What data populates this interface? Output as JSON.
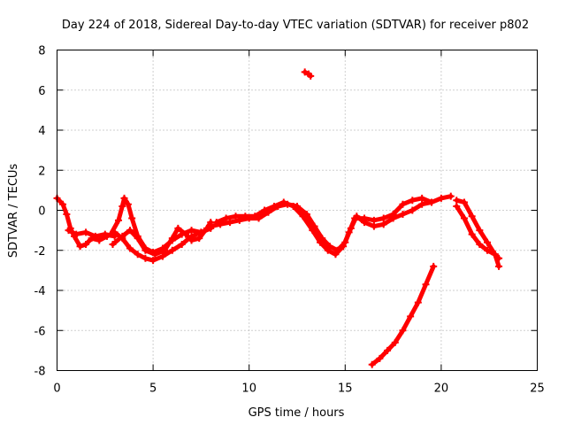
{
  "chart_data": {
    "type": "scatter",
    "title": "Day 224 of 2018, Sidereal Day-to-day VTEC variation (SDTVAR) for receiver p802",
    "xlabel": "GPS time / hours",
    "ylabel": "SDTVAR / TECUs",
    "xlim": [
      0,
      25
    ],
    "ylim": [
      -8,
      8
    ],
    "xticks": [
      0,
      5,
      10,
      15,
      20,
      25
    ],
    "yticks": [
      -8,
      -6,
      -4,
      -2,
      0,
      2,
      4,
      6,
      8
    ],
    "grid": true,
    "color": "#ff0000",
    "series": [
      {
        "name": "arc-1",
        "points": [
          [
            0.0,
            0.6
          ],
          [
            0.3,
            0.3
          ],
          [
            0.5,
            -0.2
          ],
          [
            0.7,
            -0.9
          ],
          [
            0.9,
            -1.3
          ],
          [
            1.2,
            -1.8
          ],
          [
            1.5,
            -1.7
          ],
          [
            1.8,
            -1.4
          ],
          [
            2.2,
            -1.5
          ],
          [
            2.6,
            -1.3
          ],
          [
            3.0,
            -1.1
          ],
          [
            3.4,
            -1.4
          ],
          [
            3.8,
            -1.9
          ],
          [
            4.2,
            -2.2
          ],
          [
            4.6,
            -2.4
          ],
          [
            5.0,
            -2.5
          ],
          [
            5.5,
            -2.3
          ],
          [
            6.0,
            -2.0
          ],
          [
            6.5,
            -1.7
          ],
          [
            7.0,
            -1.3
          ],
          [
            7.5,
            -1.1
          ],
          [
            8.0,
            -0.9
          ]
        ]
      },
      {
        "name": "arc-2",
        "points": [
          [
            0.6,
            -1.0
          ],
          [
            1.0,
            -1.2
          ],
          [
            1.5,
            -1.1
          ],
          [
            2.0,
            -1.3
          ],
          [
            2.5,
            -1.2
          ],
          [
            3.0,
            -1.3
          ]
        ]
      },
      {
        "name": "arc-3",
        "points": [
          [
            2.8,
            -1.2
          ],
          [
            3.2,
            -0.5
          ],
          [
            3.4,
            0.2
          ],
          [
            3.5,
            0.6
          ],
          [
            3.7,
            0.3
          ],
          [
            3.9,
            -0.4
          ],
          [
            4.2,
            -1.3
          ],
          [
            4.6,
            -1.9
          ],
          [
            5.0,
            -2.1
          ],
          [
            5.5,
            -1.9
          ],
          [
            6.0,
            -1.5
          ],
          [
            6.5,
            -1.2
          ],
          [
            7.0,
            -1.0
          ],
          [
            7.5,
            -1.1
          ]
        ]
      },
      {
        "name": "arc-4",
        "points": [
          [
            2.9,
            -1.7
          ],
          [
            3.4,
            -1.3
          ],
          [
            3.8,
            -1.0
          ],
          [
            4.2,
            -1.4
          ],
          [
            4.6,
            -2.0
          ],
          [
            5.1,
            -2.2
          ],
          [
            5.6,
            -2.0
          ],
          [
            6.0,
            -1.4
          ],
          [
            6.3,
            -0.9
          ],
          [
            6.7,
            -1.2
          ],
          [
            7.0,
            -1.5
          ],
          [
            7.4,
            -1.4
          ],
          [
            7.8,
            -0.9
          ],
          [
            8.0,
            -0.6
          ]
        ]
      },
      {
        "name": "arc-5",
        "points": [
          [
            8.0,
            -0.8
          ],
          [
            8.5,
            -0.7
          ],
          [
            9.0,
            -0.6
          ],
          [
            9.5,
            -0.5
          ],
          [
            10.0,
            -0.4
          ],
          [
            10.5,
            -0.4
          ],
          [
            11.0,
            -0.1
          ],
          [
            11.5,
            0.2
          ],
          [
            12.0,
            0.3
          ],
          [
            12.5,
            0.2
          ],
          [
            13.0,
            -0.2
          ],
          [
            13.4,
            -0.8
          ],
          [
            13.8,
            -1.4
          ],
          [
            14.2,
            -1.8
          ],
          [
            14.6,
            -2.0
          ],
          [
            15.0,
            -1.6
          ],
          [
            15.3,
            -0.9
          ],
          [
            15.6,
            -0.3
          ],
          [
            16.0,
            -0.6
          ],
          [
            16.5,
            -0.8
          ],
          [
            17.0,
            -0.7
          ],
          [
            17.5,
            -0.4
          ],
          [
            18.0,
            -0.2
          ],
          [
            18.5,
            0.0
          ],
          [
            19.0,
            0.3
          ],
          [
            19.5,
            0.4
          ],
          [
            20.0,
            0.6
          ],
          [
            20.5,
            0.7
          ]
        ]
      },
      {
        "name": "arc-6",
        "points": [
          [
            8.3,
            -0.6
          ],
          [
            8.8,
            -0.4
          ],
          [
            9.3,
            -0.3
          ],
          [
            9.8,
            -0.3
          ],
          [
            10.3,
            -0.3
          ],
          [
            10.8,
            0.0
          ],
          [
            11.3,
            0.2
          ],
          [
            11.8,
            0.4
          ],
          [
            12.3,
            0.2
          ],
          [
            12.8,
            -0.3
          ],
          [
            13.3,
            -1.0
          ],
          [
            13.7,
            -1.6
          ],
          [
            14.1,
            -2.0
          ],
          [
            14.5,
            -2.2
          ],
          [
            14.9,
            -1.8
          ],
          [
            15.2,
            -1.1
          ],
          [
            15.5,
            -0.4
          ],
          [
            16.0,
            -0.4
          ],
          [
            16.5,
            -0.5
          ],
          [
            17.0,
            -0.4
          ],
          [
            17.5,
            -0.2
          ],
          [
            18.0,
            0.3
          ],
          [
            18.5,
            0.5
          ],
          [
            19.0,
            0.6
          ],
          [
            19.5,
            0.4
          ]
        ]
      },
      {
        "name": "arc-7",
        "points": [
          [
            20.8,
            0.5
          ],
          [
            21.2,
            0.4
          ],
          [
            21.6,
            -0.3
          ],
          [
            22.0,
            -1.0
          ],
          [
            22.4,
            -1.6
          ],
          [
            22.8,
            -2.2
          ],
          [
            23.0,
            -2.8
          ]
        ]
      },
      {
        "name": "arc-8",
        "points": [
          [
            20.8,
            0.2
          ],
          [
            21.2,
            -0.4
          ],
          [
            21.6,
            -1.2
          ],
          [
            22.0,
            -1.7
          ],
          [
            22.4,
            -2.0
          ],
          [
            22.8,
            -2.2
          ],
          [
            23.0,
            -2.4
          ]
        ]
      },
      {
        "name": "arc-9",
        "points": [
          [
            16.4,
            -7.7
          ],
          [
            16.8,
            -7.4
          ],
          [
            17.2,
            -7.0
          ],
          [
            17.6,
            -6.6
          ],
          [
            18.0,
            -6.0
          ],
          [
            18.4,
            -5.3
          ],
          [
            18.8,
            -4.6
          ],
          [
            19.2,
            -3.7
          ],
          [
            19.6,
            -2.8
          ]
        ]
      },
      {
        "name": "arc-10",
        "points": [
          [
            12.9,
            6.9
          ],
          [
            13.1,
            6.8
          ],
          [
            13.2,
            6.7
          ]
        ]
      }
    ]
  }
}
